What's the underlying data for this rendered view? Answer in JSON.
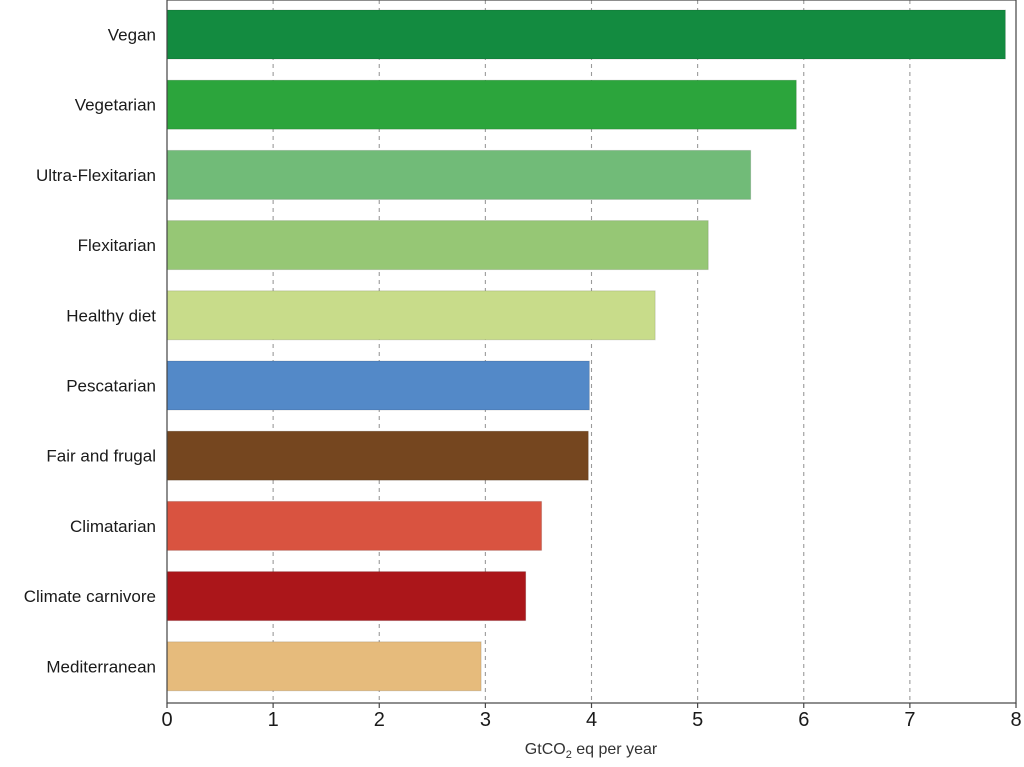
{
  "chart_data": {
    "type": "bar",
    "orientation": "horizontal",
    "categories": [
      "Vegan",
      "Vegetarian",
      "Ultra-Flexitarian",
      "Flexitarian",
      "Healthy diet",
      "Pescatarian",
      "Fair and frugal",
      "Climatarian",
      "Climate carnivore",
      "Mediterranean"
    ],
    "values": [
      7.9,
      5.93,
      5.5,
      5.1,
      4.6,
      3.98,
      3.97,
      3.53,
      3.38,
      2.96
    ],
    "colors": [
      "#138b40",
      "#2ca53c",
      "#71bb78",
      "#96c775",
      "#c8dc8a",
      "#5389c8",
      "#75461f",
      "#d95340",
      "#ab161a",
      "#e6bb7c"
    ],
    "xlabel_main": "GtCO",
    "xlabel_sub": "2",
    "xlabel_rest": " eq per year",
    "xlim": [
      0,
      8
    ],
    "xticks": [
      "0",
      "1",
      "2",
      "3",
      "4",
      "5",
      "6",
      "7",
      "8"
    ],
    "grid": "vertical dashed"
  }
}
